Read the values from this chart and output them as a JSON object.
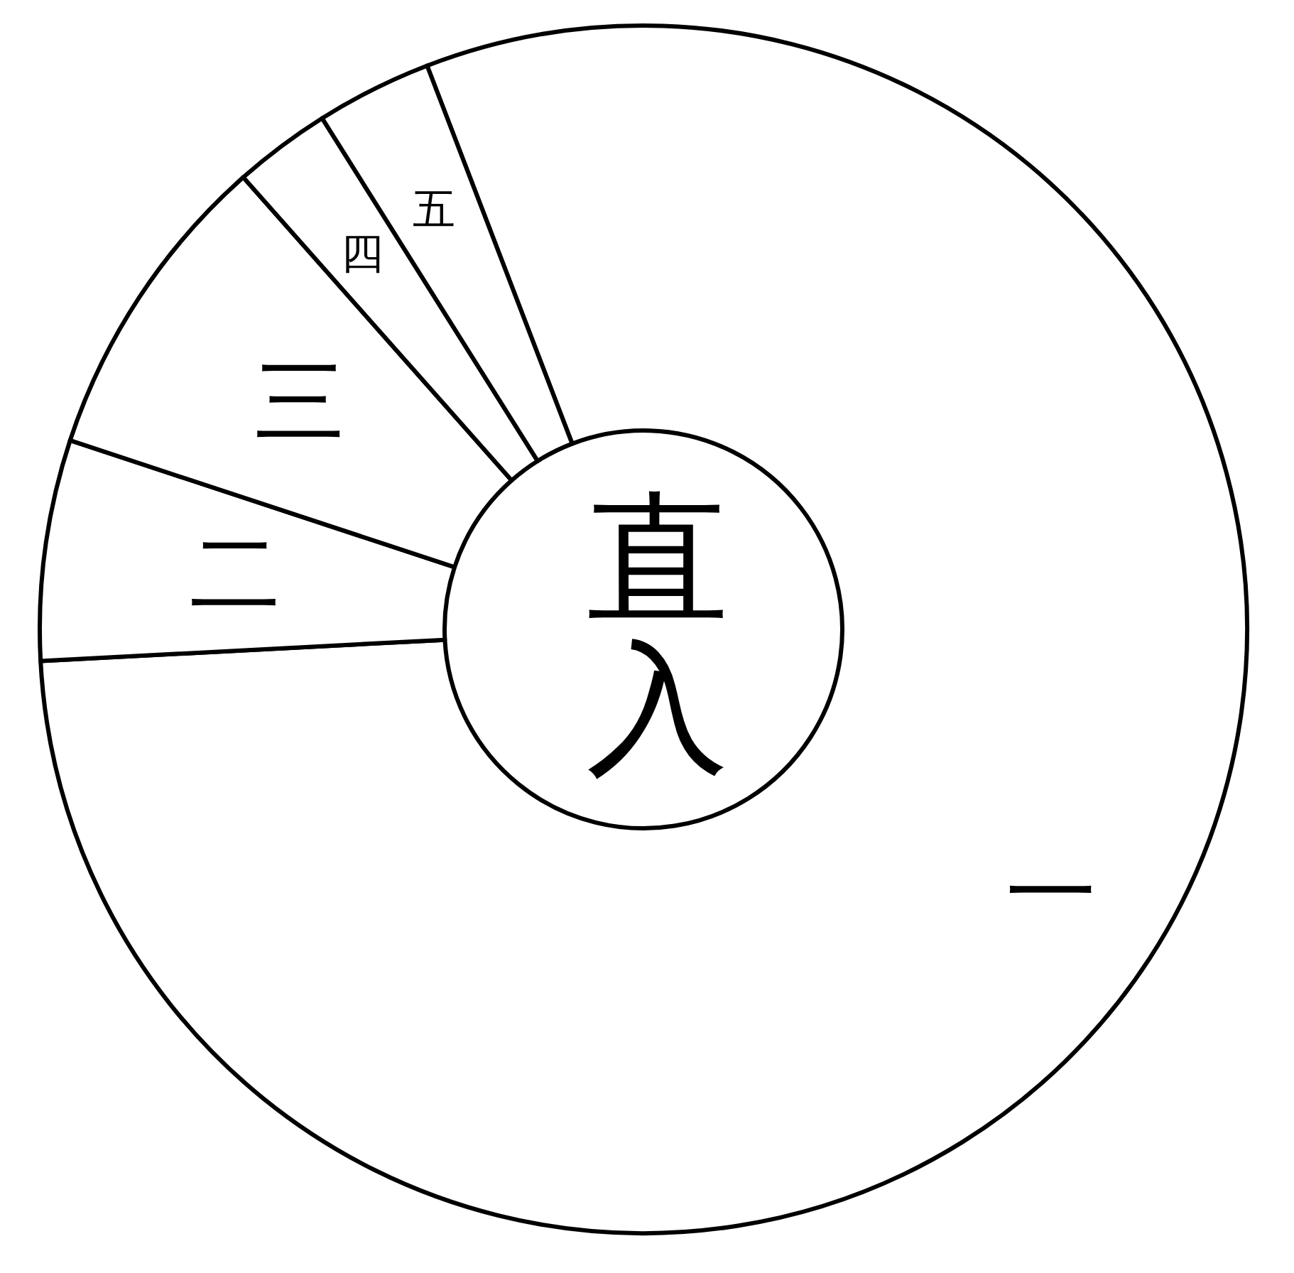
{
  "chart_data": {
    "type": "donut",
    "title": "直入",
    "categories": [
      "一",
      "二",
      "三",
      "四",
      "五"
    ],
    "values": [
      80.0,
      5.9,
      8.4,
      2.6,
      3.1
    ],
    "colors": [
      "#ffffff",
      "#ffffff",
      "#ffffff",
      "#ffffff",
      "#ffffff"
    ]
  }
}
